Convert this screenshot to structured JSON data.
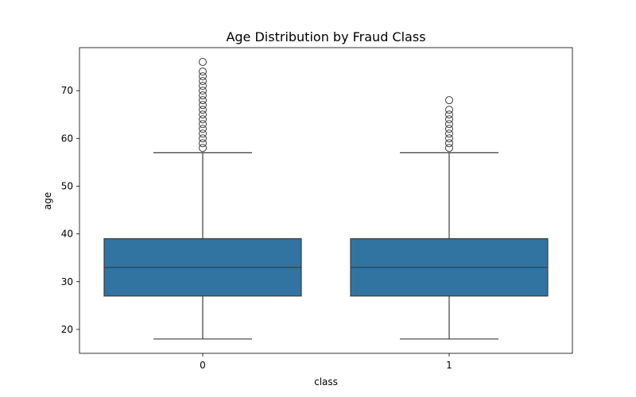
{
  "chart_data": {
    "type": "box",
    "title": "Age Distribution by Fraud Class",
    "xlabel": "class",
    "ylabel": "age",
    "categories": [
      "0",
      "1"
    ],
    "yticks": [
      20,
      30,
      40,
      50,
      60,
      70
    ],
    "ylim": [
      15,
      79
    ],
    "grid": false,
    "box_color": "#3274a1",
    "line_color": "#3d3d3d",
    "boxes": [
      {
        "category": "0",
        "whisker_low": 18,
        "q1": 27,
        "median": 33,
        "q3": 39,
        "whisker_high": 57,
        "outliers": [
          58,
          59,
          60,
          61,
          62,
          63,
          64,
          65,
          66,
          67,
          68,
          69,
          70,
          71,
          72,
          73,
          74,
          76
        ]
      },
      {
        "category": "1",
        "whisker_low": 18,
        "q1": 27,
        "median": 33,
        "q3": 39,
        "whisker_high": 57,
        "outliers": [
          58,
          59,
          60,
          61,
          62,
          63,
          64,
          65,
          66,
          68
        ]
      }
    ]
  }
}
